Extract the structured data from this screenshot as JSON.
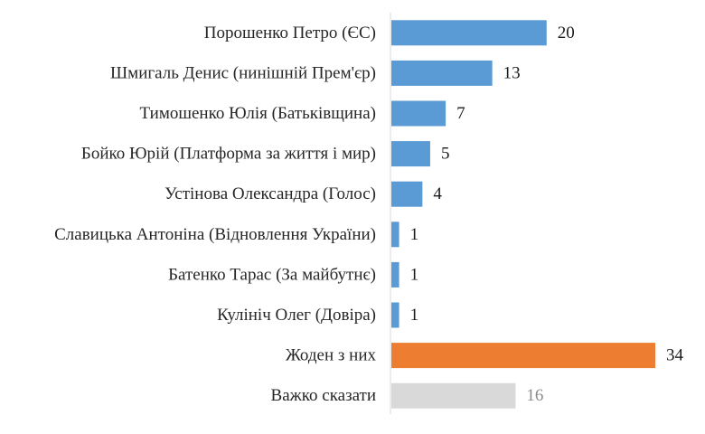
{
  "chart_data": {
    "type": "bar",
    "orientation": "horizontal",
    "title": "",
    "xlabel": "",
    "ylabel": "",
    "xlim": [
      0,
      34
    ],
    "grid": false,
    "legend": "none",
    "categories": [
      "Порошенко Петро (ЄС)",
      "Шмигаль Денис (нинішній Прем'єр)",
      "Тимошенко Юлія (Батьківщина)",
      "Бойко Юрій (Платформа за життя і мир)",
      "Устінова Олександра (Голос)",
      "Славицька Антоніна (Відновлення України)",
      "Батенко Тарас (За майбутнє)",
      "Кулініч Олег (Довіра)",
      "Жоден з них",
      "Важко сказати"
    ],
    "values": [
      20,
      13,
      7,
      5,
      4,
      1,
      1,
      1,
      34,
      16
    ],
    "bar_colors": [
      "#5b9bd5",
      "#5b9bd5",
      "#5b9bd5",
      "#5b9bd5",
      "#5b9bd5",
      "#5b9bd5",
      "#5b9bd5",
      "#5b9bd5",
      "#ed7d31",
      "#d9d9d9"
    ],
    "value_label_colors": [
      "#1a1a1a",
      "#1a1a1a",
      "#1a1a1a",
      "#1a1a1a",
      "#1a1a1a",
      "#1a1a1a",
      "#1a1a1a",
      "#1a1a1a",
      "#1a1a1a",
      "#8c8c8c"
    ],
    "category_label_color": "#262626",
    "axis_color": "#d9d9d9"
  }
}
